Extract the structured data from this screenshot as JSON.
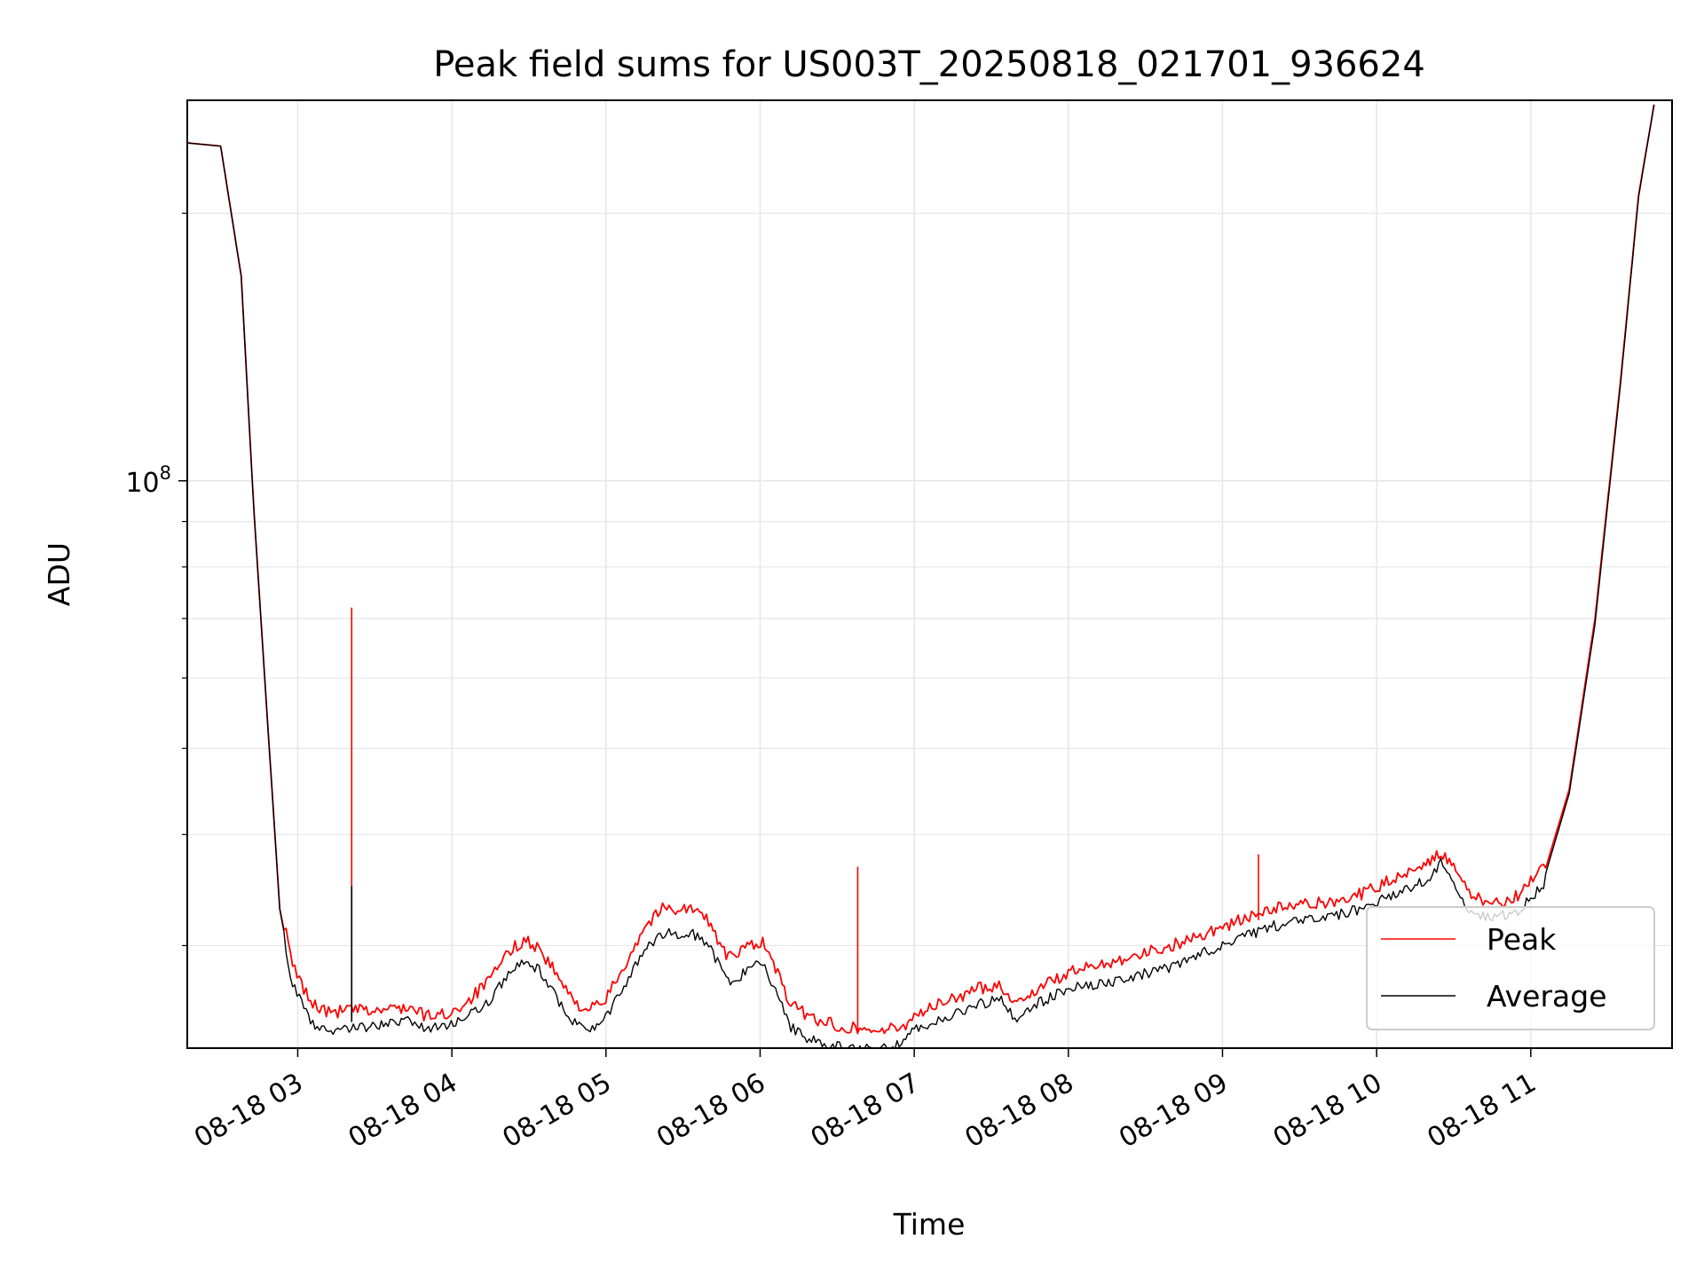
{
  "chart_data": {
    "type": "line",
    "title": "Peak field sums for US003T_20250818_021701_936624",
    "xlabel": "Time",
    "ylabel": "ADU",
    "x_range": [
      "2025-08-18 02:17",
      "2025-08-18 11:55"
    ],
    "y_scale": "log",
    "y_range": [
      23000000,
      268000000
    ],
    "x_ticks": [
      "08-18 03",
      "08-18 04",
      "08-18 05",
      "08-18 06",
      "08-18 07",
      "08-18 08",
      "08-18 09",
      "08-18 10",
      "08-18 11"
    ],
    "y_tick_major": {
      "value": 100000000,
      "base": "10",
      "exp": "8"
    },
    "y_tick_minor": [
      30000000,
      40000000,
      50000000,
      60000000,
      70000000,
      80000000,
      90000000,
      200000000
    ],
    "grid": true,
    "legend_placement": "lower-right",
    "series": [
      {
        "name": "Peak",
        "color": "#ff0000",
        "points": [
          [
            "2025-08-18 02:17",
            240000000
          ],
          [
            "2025-08-18 02:30",
            238000000
          ],
          [
            "2025-08-18 02:38",
            170000000
          ],
          [
            "2025-08-18 02:43",
            92000000
          ],
          [
            "2025-08-18 02:48",
            55000000
          ],
          [
            "2025-08-18 02:53",
            33000000
          ],
          [
            "2025-08-18 02:58",
            28000000
          ],
          [
            "2025-08-18 03:05",
            25500000
          ],
          [
            "2025-08-18 03:12",
            24800000
          ],
          [
            "2025-08-18 03:20",
            25000000
          ],
          [
            "2025-08-18 03:30",
            24900000
          ],
          [
            "2025-08-18 03:42",
            25200000
          ],
          [
            "2025-08-18 03:50",
            24600000
          ],
          [
            "2025-08-18 03:58",
            24700000
          ],
          [
            "2025-08-18 04:05",
            25400000
          ],
          [
            "2025-08-18 04:15",
            27000000
          ],
          [
            "2025-08-18 04:22",
            29000000
          ],
          [
            "2025-08-18 04:28",
            30000000
          ],
          [
            "2025-08-18 04:34",
            29300000
          ],
          [
            "2025-08-18 04:40",
            27600000
          ],
          [
            "2025-08-18 04:47",
            25600000
          ],
          [
            "2025-08-18 04:53",
            25000000
          ],
          [
            "2025-08-18 04:59",
            25400000
          ],
          [
            "2025-08-18 05:07",
            28000000
          ],
          [
            "2025-08-18 05:15",
            31000000
          ],
          [
            "2025-08-18 05:22",
            32500000
          ],
          [
            "2025-08-18 05:33",
            32500000
          ],
          [
            "2025-08-18 05:40",
            31500000
          ],
          [
            "2025-08-18 05:46",
            29000000
          ],
          [
            "2025-08-18 05:50",
            28500000
          ],
          [
            "2025-08-18 05:55",
            29600000
          ],
          [
            "2025-08-18 06:01",
            29800000
          ],
          [
            "2025-08-18 06:06",
            27800000
          ],
          [
            "2025-08-18 06:12",
            25300000
          ],
          [
            "2025-08-18 06:20",
            24500000
          ],
          [
            "2025-08-18 06:30",
            24000000
          ],
          [
            "2025-08-18 06:45",
            23700000
          ],
          [
            "2025-08-18 06:55",
            23800000
          ],
          [
            "2025-08-18 07:00",
            24700000
          ],
          [
            "2025-08-18 07:12",
            25500000
          ],
          [
            "2025-08-18 07:25",
            26400000
          ],
          [
            "2025-08-18 07:33",
            26700000
          ],
          [
            "2025-08-18 07:40",
            25400000
          ],
          [
            "2025-08-18 07:45",
            26100000
          ],
          [
            "2025-08-18 08:00",
            27500000
          ],
          [
            "2025-08-18 08:20",
            28500000
          ],
          [
            "2025-08-18 08:40",
            29500000
          ],
          [
            "2025-08-18 09:00",
            31000000
          ],
          [
            "2025-08-18 09:20",
            32500000
          ],
          [
            "2025-08-18 09:40",
            33000000
          ],
          [
            "2025-08-18 09:55",
            33800000
          ],
          [
            "2025-08-18 10:10",
            35500000
          ],
          [
            "2025-08-18 10:20",
            36800000
          ],
          [
            "2025-08-18 10:25",
            37500000
          ],
          [
            "2025-08-18 10:30",
            36000000
          ],
          [
            "2025-08-18 10:36",
            33800000
          ],
          [
            "2025-08-18 10:45",
            32800000
          ],
          [
            "2025-08-18 10:55",
            33600000
          ],
          [
            "2025-08-18 11:05",
            36000000
          ],
          [
            "2025-08-18 11:15",
            45000000
          ],
          [
            "2025-08-18 11:25",
            70000000
          ],
          [
            "2025-08-18 11:35",
            130000000
          ],
          [
            "2025-08-18 11:42",
            210000000
          ],
          [
            "2025-08-18 11:48",
            265000000
          ]
        ],
        "spikes": [
          [
            "2025-08-18 03:21",
            72000000
          ],
          [
            "2025-08-18 06:38",
            36800000
          ],
          [
            "2025-08-18 09:14",
            38000000
          ]
        ]
      },
      {
        "name": "Average",
        "color": "#000000",
        "points": [
          [
            "2025-08-18 02:17",
            240000000
          ],
          [
            "2025-08-18 02:30",
            238000000
          ],
          [
            "2025-08-18 02:38",
            170000000
          ],
          [
            "2025-08-18 02:43",
            92000000
          ],
          [
            "2025-08-18 02:48",
            55000000
          ],
          [
            "2025-08-18 02:53",
            33000000
          ],
          [
            "2025-08-18 02:58",
            27500000
          ],
          [
            "2025-08-18 03:05",
            25000000
          ],
          [
            "2025-08-18 03:12",
            24300000
          ],
          [
            "2025-08-18 03:20",
            24600000
          ],
          [
            "2025-08-18 03:30",
            24700000
          ],
          [
            "2025-08-18 03:42",
            25000000
          ],
          [
            "2025-08-18 03:50",
            24500000
          ],
          [
            "2025-08-18 03:58",
            24700000
          ],
          [
            "2025-08-18 04:05",
            25200000
          ],
          [
            "2025-08-18 04:15",
            26500000
          ],
          [
            "2025-08-18 04:22",
            28300000
          ],
          [
            "2025-08-18 04:28",
            29200000
          ],
          [
            "2025-08-18 04:34",
            28600000
          ],
          [
            "2025-08-18 04:40",
            26800000
          ],
          [
            "2025-08-18 04:47",
            25000000
          ],
          [
            "2025-08-18 04:53",
            24400000
          ],
          [
            "2025-08-18 04:59",
            25000000
          ],
          [
            "2025-08-18 05:07",
            27300000
          ],
          [
            "2025-08-18 05:15",
            30000000
          ],
          [
            "2025-08-18 05:22",
            31300000
          ],
          [
            "2025-08-18 05:33",
            31500000
          ],
          [
            "2025-08-18 05:40",
            30500000
          ],
          [
            "2025-08-18 05:46",
            28200000
          ],
          [
            "2025-08-18 05:50",
            27600000
          ],
          [
            "2025-08-18 05:55",
            28600000
          ],
          [
            "2025-08-18 06:01",
            29000000
          ],
          [
            "2025-08-18 06:06",
            27000000
          ],
          [
            "2025-08-18 06:12",
            24600000
          ],
          [
            "2025-08-18 06:20",
            23800000
          ],
          [
            "2025-08-18 06:30",
            23400000
          ],
          [
            "2025-08-18 06:45",
            23200000
          ],
          [
            "2025-08-18 06:55",
            23500000
          ],
          [
            "2025-08-18 07:00",
            24400000
          ],
          [
            "2025-08-18 07:12",
            25200000
          ],
          [
            "2025-08-18 07:25",
            26100000
          ],
          [
            "2025-08-18 07:33",
            26500000
          ],
          [
            "2025-08-18 07:40",
            25100000
          ],
          [
            "2025-08-18 07:45",
            25900000
          ],
          [
            "2025-08-18 08:00",
            27200000
          ],
          [
            "2025-08-18 08:20",
            27800000
          ],
          [
            "2025-08-18 08:40",
            28800000
          ],
          [
            "2025-08-18 09:00",
            30500000
          ],
          [
            "2025-08-18 09:20",
            32000000
          ],
          [
            "2025-08-18 09:40",
            32700000
          ],
          [
            "2025-08-18 09:55",
            33500000
          ],
          [
            "2025-08-18 10:10",
            35000000
          ],
          [
            "2025-08-18 10:20",
            36200000
          ],
          [
            "2025-08-18 10:25",
            37800000
          ],
          [
            "2025-08-18 10:30",
            35500000
          ],
          [
            "2025-08-18 10:36",
            33300000
          ],
          [
            "2025-08-18 10:45",
            32600000
          ],
          [
            "2025-08-18 10:55",
            33300000
          ],
          [
            "2025-08-18 11:05",
            35500000
          ],
          [
            "2025-08-18 11:15",
            44500000
          ],
          [
            "2025-08-18 11:25",
            69000000
          ],
          [
            "2025-08-18 11:35",
            129000000
          ],
          [
            "2025-08-18 11:42",
            209000000
          ],
          [
            "2025-08-18 11:48",
            265000000
          ]
        ],
        "spikes": [
          [
            "2025-08-18 03:21",
            35000000
          ]
        ]
      }
    ]
  }
}
